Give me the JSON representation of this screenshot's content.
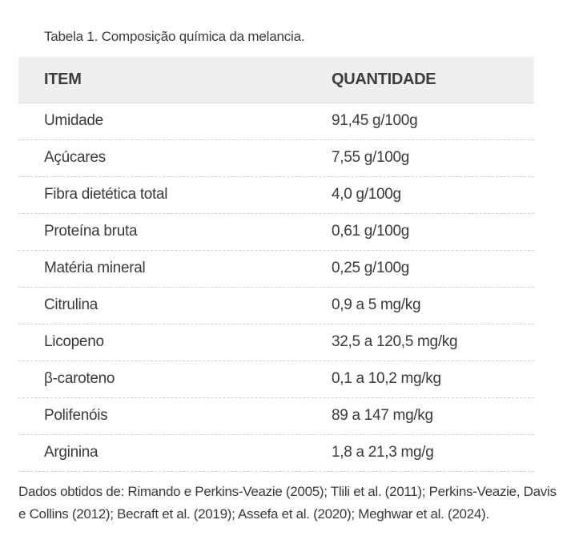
{
  "caption": "Tabela 1.  Composição química da melancia.",
  "table": {
    "headers": [
      "ITEM",
      "QUANTIDADE"
    ],
    "rows": [
      [
        "Umidade",
        "91,45 g/100g"
      ],
      [
        "Açúcares",
        "7,55 g/100g"
      ],
      [
        "Fibra dietética total",
        "4,0 g/100g"
      ],
      [
        "Proteína bruta",
        "0,61 g/100g"
      ],
      [
        "Matéria mineral",
        "0,25 g/100g"
      ],
      [
        "Citrulina",
        "0,9 a 5 mg/kg"
      ],
      [
        "Licopeno",
        "32,5 a 120,5 mg/kg"
      ],
      [
        "β-caroteno",
        "0,1 a 10,2 mg/kg"
      ],
      [
        "Polifenóis",
        "89 a 147 mg/kg"
      ],
      [
        "Arginina",
        "1,8 a 21,3 mg/g"
      ]
    ]
  },
  "footnote": "Dados obtidos de: Rimando e Perkins-Veazie (2005); Tlili et al. (2011); Perkins-Veazie, Davis e Collins (2012); Becraft et al. (2019); Assefa et al. (2020); Meghwar et al. (2024)."
}
